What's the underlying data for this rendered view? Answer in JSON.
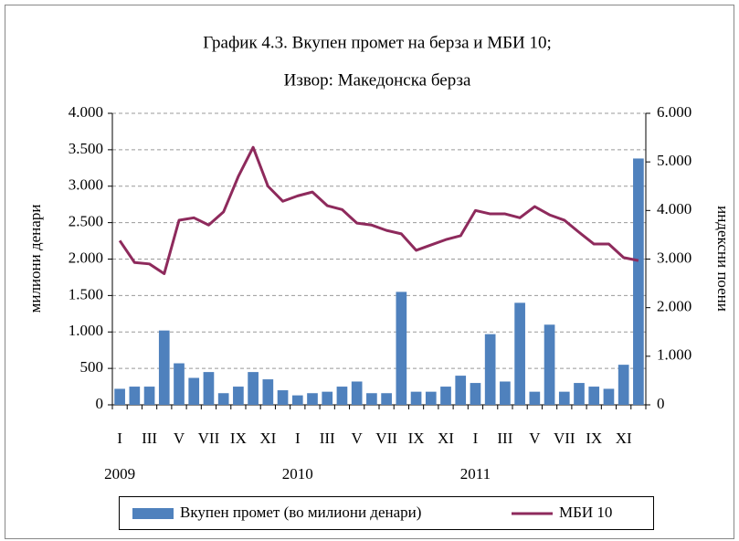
{
  "chart_data": {
    "type": "bar-line",
    "title": "График 4.3. Вкупен промет на берза и МБИ 10;",
    "subtitle": "Извор: Македонска берза",
    "y_label": "милиони денари",
    "y2_label": "индексни поени",
    "categories": [
      "I",
      null,
      "III",
      null,
      "V",
      null,
      "VII",
      null,
      "IX",
      null,
      "XI",
      null,
      "I",
      null,
      "III",
      null,
      "V",
      null,
      "VII",
      null,
      "IX",
      null,
      "XI",
      null,
      "I",
      null,
      "III",
      null,
      "V",
      null,
      "VII",
      null,
      "IX",
      null,
      "XI",
      null
    ],
    "years": [
      "2009",
      null,
      null,
      null,
      null,
      null,
      null,
      null,
      null,
      null,
      null,
      null,
      "2010",
      null,
      null,
      null,
      null,
      null,
      null,
      null,
      null,
      null,
      null,
      null,
      "2011",
      null,
      null,
      null,
      null,
      null,
      null,
      null,
      null,
      null,
      null,
      null
    ],
    "series": [
      {
        "name": "Вкупен промет (во милиони денари)",
        "color": "#4f81bd",
        "kind": "bar",
        "values": [
          220,
          250,
          250,
          1020,
          570,
          370,
          450,
          160,
          250,
          450,
          350,
          200,
          130,
          160,
          180,
          250,
          320,
          160,
          160,
          1550,
          180,
          180,
          250,
          400,
          300,
          970,
          320,
          1400,
          180,
          1100,
          180,
          300,
          250,
          220,
          550,
          3380
        ]
      },
      {
        "name": "МБИ 10",
        "color": "#8e2a5c",
        "kind": "line",
        "axis": "y2",
        "values": [
          3380,
          2930,
          2900,
          2700,
          3800,
          3850,
          3700,
          3970,
          4700,
          5300,
          4500,
          4190,
          4300,
          4380,
          4100,
          4020,
          3740,
          3700,
          3590,
          3520,
          3180,
          3290,
          3400,
          3480,
          4000,
          3930,
          3930,
          3850,
          4080,
          3910,
          3800,
          3550,
          3310,
          3310,
          3030,
          2970
        ]
      }
    ],
    "ylim": [
      0,
      4000
    ],
    "yticks": [
      0,
      500,
      {
        "value": 1000,
        "label": "1.000"
      },
      {
        "value": 1500,
        "label": "1.500"
      },
      {
        "value": 2000,
        "label": "2.000"
      },
      {
        "value": 2500,
        "label": "2.500"
      },
      {
        "value": 3000,
        "label": "3.000"
      },
      {
        "value": 3500,
        "label": "3.500"
      },
      {
        "value": 4000,
        "label": "4.000"
      }
    ],
    "y2lim": [
      0,
      6000
    ],
    "y2ticks": [
      0,
      {
        "value": 1000,
        "label": "1.000"
      },
      {
        "value": 2000,
        "label": "2.000"
      },
      {
        "value": 3000,
        "label": "3.000"
      },
      {
        "value": 4000,
        "label": "4.000"
      },
      {
        "value": 5000,
        "label": "5.000"
      },
      {
        "value": 6000,
        "label": "6.000"
      }
    ],
    "grid": true
  }
}
